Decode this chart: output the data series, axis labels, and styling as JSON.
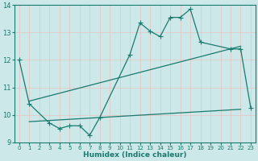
{
  "xlabel": "Humidex (Indice chaleur)",
  "bg_color": "#cce8e8",
  "grid_color": "#b0d0d0",
  "line_color": "#1a7a6e",
  "xlim": [
    -0.5,
    23.5
  ],
  "ylim": [
    9,
    14
  ],
  "xticks": [
    0,
    1,
    2,
    3,
    4,
    5,
    6,
    7,
    8,
    9,
    10,
    11,
    12,
    13,
    14,
    15,
    16,
    17,
    18,
    19,
    20,
    21,
    22,
    23
  ],
  "yticks": [
    9,
    10,
    11,
    12,
    13,
    14
  ],
  "line1_x": [
    0,
    1,
    3,
    4,
    5,
    6,
    7,
    8,
    11,
    12,
    13,
    14,
    15,
    16,
    17,
    18,
    21,
    22,
    23
  ],
  "line1_y": [
    12.0,
    10.4,
    9.7,
    9.5,
    9.6,
    9.6,
    9.25,
    9.9,
    12.2,
    13.35,
    13.05,
    12.85,
    13.55,
    13.55,
    13.85,
    12.65,
    12.4,
    12.4,
    10.25
  ],
  "line2_x": [
    1,
    22
  ],
  "line2_y": [
    9.75,
    10.2
  ],
  "line3_x": [
    1,
    22
  ],
  "line3_y": [
    10.5,
    12.5
  ],
  "figwidth": 3.2,
  "figheight": 2.0,
  "dpi": 100
}
